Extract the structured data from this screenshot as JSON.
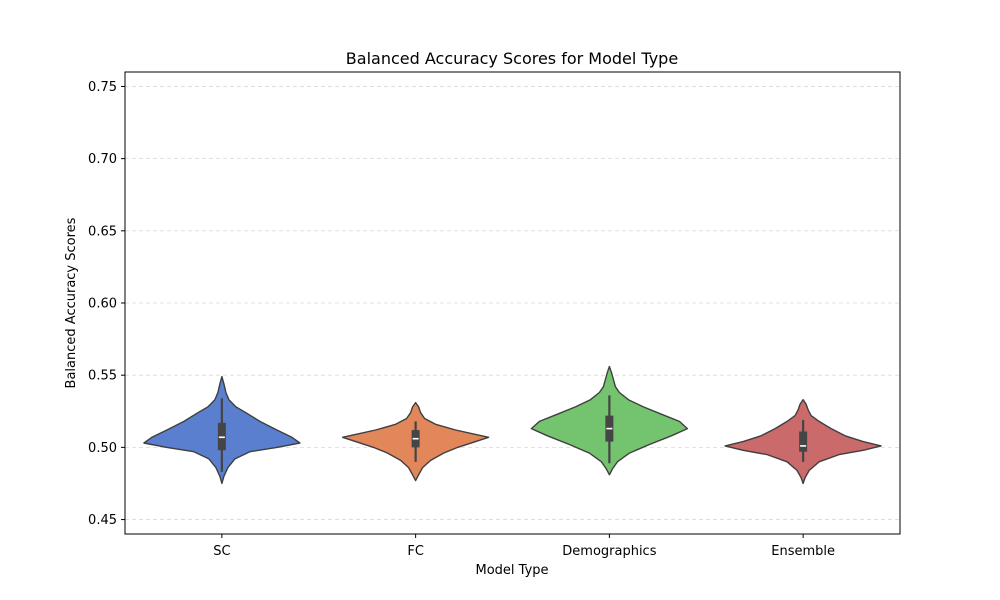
{
  "chart_data": {
    "type": "violin",
    "title": "Balanced Accuracy Scores for Model Type",
    "xlabel": "Model Type",
    "ylabel": "Balanced Accuracy Scores",
    "ylim": [
      0.44,
      0.76
    ],
    "yticks": [
      "0.45",
      "0.50",
      "0.55",
      "0.60",
      "0.65",
      "0.70",
      "0.75"
    ],
    "grid": "horizontal dashed",
    "categories": [
      "SC",
      "FC",
      "Demographics",
      "Ensemble"
    ],
    "series": [
      {
        "category": "SC",
        "color": "#4c72b0",
        "fill": "#5a7fcf",
        "range": [
          0.475,
          0.549
        ],
        "whisker": [
          0.483,
          0.534
        ],
        "box": [
          0.498,
          0.517
        ],
        "median": 0.507,
        "density": [
          [
            0.475,
            0
          ],
          [
            0.48,
            2
          ],
          [
            0.486,
            6
          ],
          [
            0.492,
            13
          ],
          [
            0.497,
            28
          ],
          [
            0.5,
            55
          ],
          [
            0.503,
            78
          ],
          [
            0.507,
            70
          ],
          [
            0.512,
            55
          ],
          [
            0.518,
            38
          ],
          [
            0.524,
            24
          ],
          [
            0.528,
            14
          ],
          [
            0.533,
            7
          ],
          [
            0.538,
            4
          ],
          [
            0.544,
            2
          ],
          [
            0.549,
            0
          ]
        ]
      },
      {
        "category": "FC",
        "color": "#dd8452",
        "fill": "#e1875a",
        "range": [
          0.477,
          0.531
        ],
        "whisker": [
          0.49,
          0.518
        ],
        "box": [
          0.5,
          0.512
        ],
        "median": 0.506,
        "density": [
          [
            0.477,
            0
          ],
          [
            0.481,
            3
          ],
          [
            0.486,
            7
          ],
          [
            0.491,
            15
          ],
          [
            0.496,
            28
          ],
          [
            0.5,
            42
          ],
          [
            0.504,
            60
          ],
          [
            0.507,
            73
          ],
          [
            0.509,
            60
          ],
          [
            0.512,
            40
          ],
          [
            0.516,
            20
          ],
          [
            0.52,
            9
          ],
          [
            0.524,
            5
          ],
          [
            0.528,
            3
          ],
          [
            0.531,
            0
          ]
        ]
      },
      {
        "category": "Demographics",
        "color": "#55a868",
        "fill": "#74c46f",
        "range": [
          0.481,
          0.556
        ],
        "whisker": [
          0.489,
          0.536
        ],
        "box": [
          0.504,
          0.522
        ],
        "median": 0.513,
        "density": [
          [
            0.481,
            0
          ],
          [
            0.485,
            3
          ],
          [
            0.49,
            8
          ],
          [
            0.496,
            20
          ],
          [
            0.502,
            40
          ],
          [
            0.508,
            62
          ],
          [
            0.513,
            78
          ],
          [
            0.518,
            70
          ],
          [
            0.523,
            52
          ],
          [
            0.528,
            34
          ],
          [
            0.533,
            19
          ],
          [
            0.538,
            10
          ],
          [
            0.542,
            6
          ],
          [
            0.547,
            4
          ],
          [
            0.552,
            2
          ],
          [
            0.556,
            0
          ]
        ]
      },
      {
        "category": "Ensemble",
        "color": "#c44e52",
        "fill": "#cb6a6a",
        "range": [
          0.475,
          0.533
        ],
        "whisker": [
          0.49,
          0.519
        ],
        "box": [
          0.497,
          0.511
        ],
        "median": 0.501,
        "density": [
          [
            0.475,
            0
          ],
          [
            0.479,
            2
          ],
          [
            0.484,
            6
          ],
          [
            0.49,
            16
          ],
          [
            0.495,
            36
          ],
          [
            0.498,
            60
          ],
          [
            0.501,
            78
          ],
          [
            0.504,
            60
          ],
          [
            0.508,
            42
          ],
          [
            0.513,
            28
          ],
          [
            0.518,
            16
          ],
          [
            0.522,
            8
          ],
          [
            0.526,
            5
          ],
          [
            0.53,
            3
          ],
          [
            0.533,
            0
          ]
        ]
      }
    ]
  }
}
